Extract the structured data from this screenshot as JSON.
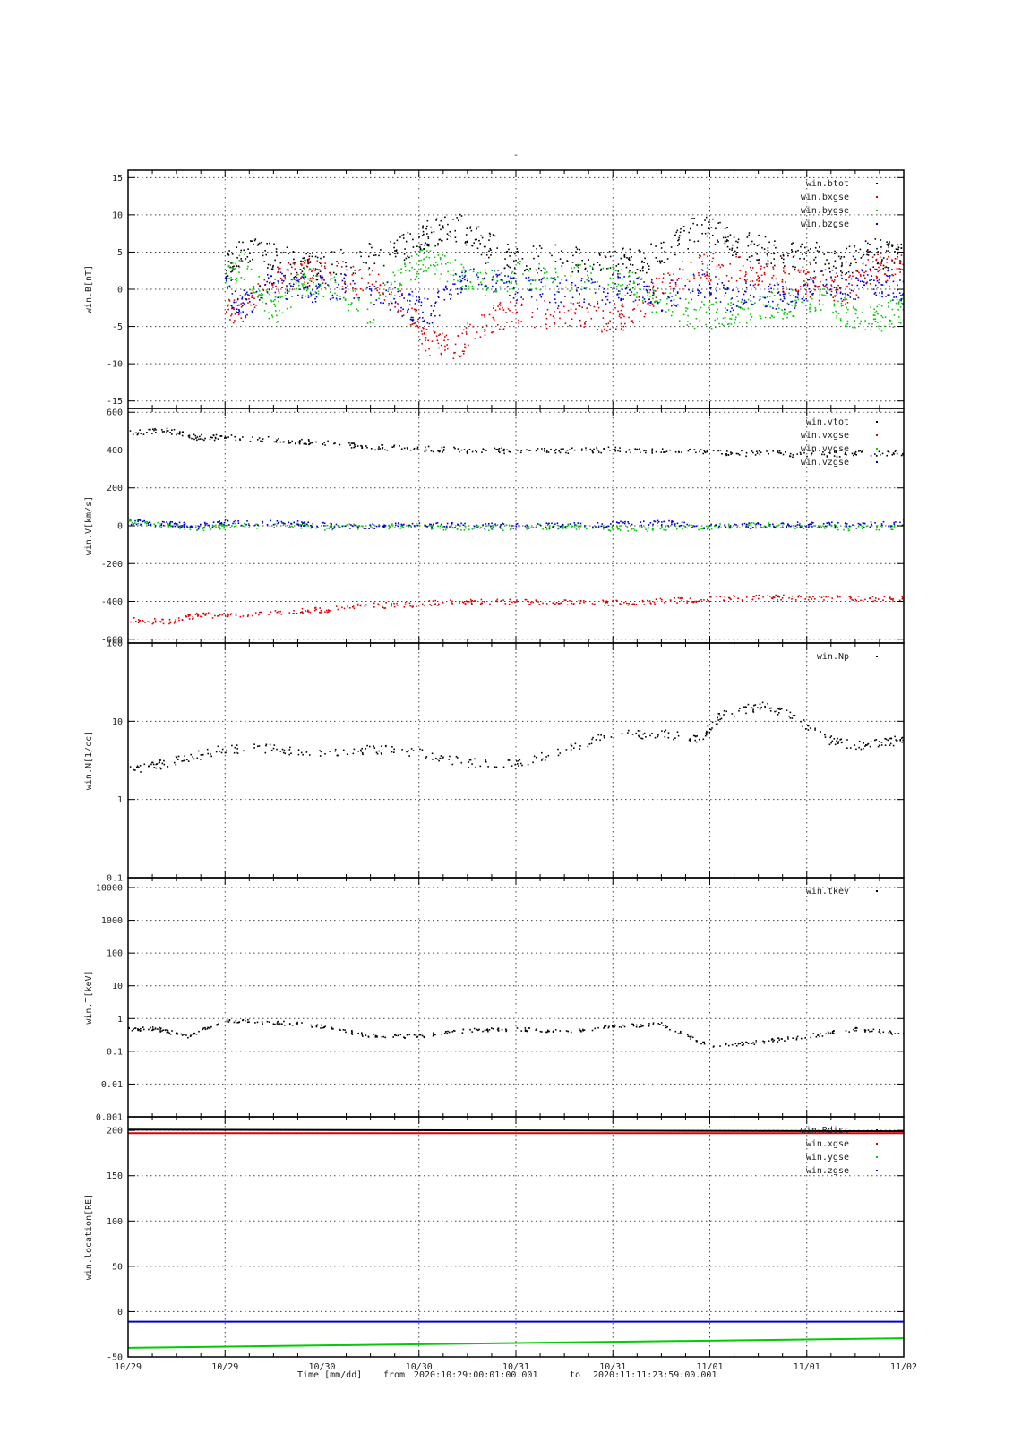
{
  "title": "-",
  "footer": {
    "time_label": "Time [mm/dd]",
    "from_label": "from",
    "from_value": "2020:10:29:00:01:00.001",
    "to_label": "to",
    "to_value": "2020:11:11:23:59:00.001"
  },
  "colors": {
    "black": "#000000",
    "red": "#dd0000",
    "green": "#00cc00",
    "blue": "#0000cc"
  },
  "chart_data": [
    {
      "id": "panel-b",
      "type": "scatter",
      "ylabel": "win.B[nT]",
      "yscale": "linear",
      "ylim": [
        -16,
        16
      ],
      "yticks": [
        -15,
        -10,
        -5,
        0,
        5,
        10,
        15
      ],
      "ytick_labels": [
        "-15",
        "-10",
        "-5",
        "0",
        "5",
        "10",
        "15"
      ],
      "xlim": [
        0,
        4
      ],
      "x_unit": "days since 10/29 00:00",
      "series": [
        {
          "name": "win.btot",
          "color": "#000000",
          "x": [
            0.5,
            0.6,
            0.75,
            0.9,
            1.0,
            1.25,
            1.45,
            1.55,
            1.7,
            1.85,
            2.0,
            2.25,
            2.45,
            2.6,
            2.75,
            2.95,
            3.1,
            3.25,
            3.4,
            3.55,
            3.7,
            3.85,
            3.95,
            4.05,
            4.12
          ],
          "y": [
            3.5,
            5.5,
            4.5,
            3.0,
            3.0,
            4.5,
            6.0,
            7.5,
            8.5,
            6.0,
            4.0,
            4.2,
            4.0,
            3.5,
            5.0,
            8.5,
            6.5,
            5.5,
            4.5,
            4.5,
            4.0,
            5.0,
            4.5,
            7.0,
            8.0
          ]
        },
        {
          "name": "win.bxgse",
          "color": "#dd0000",
          "x": [
            0.5,
            0.6,
            0.75,
            0.9,
            1.0,
            1.25,
            1.45,
            1.55,
            1.7,
            1.85,
            2.0,
            2.25,
            2.45,
            2.6,
            2.75,
            2.95,
            3.1,
            3.25,
            3.4,
            3.55,
            3.7,
            3.85,
            3.95,
            4.05,
            4.12
          ],
          "y": [
            -3.0,
            -2.5,
            1.0,
            2.5,
            2.0,
            1.0,
            -3.0,
            -7.0,
            -7.5,
            -4.0,
            -3.0,
            -3.5,
            -3.8,
            -3.5,
            1.0,
            3.0,
            3.0,
            2.0,
            1.0,
            0.5,
            0.0,
            3.0,
            3.0,
            2.5,
            4.0
          ]
        },
        {
          "name": "win.bygse",
          "color": "#00cc00",
          "x": [
            0.5,
            0.6,
            0.75,
            0.9,
            1.0,
            1.25,
            1.45,
            1.55,
            1.7,
            1.85,
            2.0,
            2.25,
            2.45,
            2.6,
            2.75,
            2.95,
            3.1,
            3.25,
            3.4,
            3.55,
            3.7,
            3.85,
            3.95,
            4.05,
            4.12
          ],
          "y": [
            2.0,
            3.0,
            -3.0,
            1.0,
            1.0,
            -3.0,
            3.0,
            4.0,
            2.0,
            1.0,
            2.0,
            1.5,
            2.0,
            0.5,
            -2.0,
            -3.5,
            -3.0,
            -2.5,
            -2.0,
            -1.0,
            -3.0,
            -4.0,
            -3.0,
            -2.0,
            -6.0
          ]
        },
        {
          "name": "win.bzgse",
          "color": "#0000cc",
          "x": [
            0.5,
            0.6,
            0.75,
            0.9,
            1.0,
            1.25,
            1.45,
            1.55,
            1.7,
            1.85,
            2.0,
            2.25,
            2.45,
            2.6,
            2.75,
            2.95,
            3.1,
            3.25,
            3.4,
            3.55,
            3.7,
            3.85,
            3.95,
            4.05,
            4.12
          ],
          "y": [
            0.0,
            -2.0,
            1.0,
            0.0,
            0.5,
            0.0,
            -2.0,
            -3.0,
            1.0,
            2.0,
            0.5,
            -0.5,
            0.0,
            0.5,
            -1.0,
            1.0,
            -1.0,
            0.0,
            -1.5,
            1.0,
            0.5,
            1.0,
            0.5,
            -0.5,
            1.0
          ]
        }
      ]
    },
    {
      "id": "panel-v",
      "type": "scatter",
      "ylabel": "win.V[km/s]",
      "yscale": "linear",
      "ylim": [
        -620,
        620
      ],
      "yticks": [
        -600,
        -400,
        -200,
        0,
        200,
        400,
        600
      ],
      "ytick_labels": [
        "-600",
        "-400",
        "-200",
        "0",
        "200",
        "400",
        "600"
      ],
      "xlim": [
        0,
        4
      ],
      "x_unit": "days since 10/29 00:00",
      "series": [
        {
          "name": "win.vtot",
          "color": "#000000",
          "x": [
            0.0,
            0.2,
            0.35,
            0.5,
            0.8,
            1.0,
            1.25,
            1.5,
            1.75,
            2.0,
            2.25,
            2.5,
            2.75,
            3.0,
            3.25,
            3.5,
            3.75,
            4.0,
            4.12
          ],
          "y": [
            495,
            505,
            470,
            470,
            455,
            440,
            420,
            410,
            400,
            400,
            400,
            405,
            400,
            390,
            385,
            380,
            385,
            390,
            395
          ]
        },
        {
          "name": "win.vxgse",
          "color": "#dd0000",
          "x": [
            0.0,
            0.2,
            0.35,
            0.5,
            0.8,
            1.0,
            1.25,
            1.5,
            1.75,
            2.0,
            2.25,
            2.5,
            2.75,
            3.0,
            3.25,
            3.5,
            3.75,
            4.0,
            4.12
          ],
          "y": [
            -495,
            -505,
            -470,
            -470,
            -455,
            -440,
            -420,
            -410,
            -400,
            -400,
            -400,
            -405,
            -395,
            -385,
            -375,
            -375,
            -380,
            -385,
            -395
          ]
        },
        {
          "name": "win.vygse",
          "color": "#00cc00",
          "x": [
            0.0,
            0.2,
            0.35,
            0.5,
            0.8,
            1.0,
            1.25,
            1.5,
            1.75,
            2.0,
            2.25,
            2.5,
            2.75,
            3.0,
            3.25,
            3.5,
            3.75,
            4.0,
            4.12
          ],
          "y": [
            20,
            10,
            -10,
            0,
            10,
            -5,
            0,
            0,
            -10,
            -5,
            0,
            -10,
            -15,
            0,
            5,
            0,
            -10,
            -5,
            -5
          ]
        },
        {
          "name": "win.vzgse",
          "color": "#0000cc",
          "x": [
            0.0,
            0.2,
            0.35,
            0.5,
            0.8,
            1.0,
            1.25,
            1.5,
            1.75,
            2.0,
            2.25,
            2.5,
            2.75,
            3.0,
            3.25,
            3.5,
            3.75,
            4.0,
            4.12
          ],
          "y": [
            25,
            15,
            0,
            20,
            20,
            5,
            0,
            5,
            5,
            0,
            5,
            10,
            20,
            0,
            5,
            10,
            5,
            20,
            20
          ]
        }
      ]
    },
    {
      "id": "panel-n",
      "type": "scatter",
      "ylabel": "win.N[1/cc]",
      "yscale": "log",
      "ylim": [
        0.1,
        100
      ],
      "yticks": [
        0.1,
        1,
        10,
        100
      ],
      "ytick_labels": [
        "0.1",
        "1",
        "10",
        "100"
      ],
      "xlim": [
        0,
        4
      ],
      "x_unit": "days since 10/29 00:00",
      "series": [
        {
          "name": "win.Np",
          "color": "#000000",
          "x": [
            0.0,
            0.15,
            0.3,
            0.5,
            0.75,
            1.0,
            1.25,
            1.5,
            1.75,
            2.0,
            2.25,
            2.5,
            2.75,
            2.95,
            3.05,
            3.25,
            3.4,
            3.6,
            3.75,
            3.9,
            4.0,
            4.1,
            4.12
          ],
          "y": [
            2.5,
            2.8,
            3.5,
            4.5,
            4.5,
            4.0,
            4.5,
            4.0,
            3.0,
            2.8,
            4.5,
            7.0,
            7.0,
            6.0,
            12.0,
            16.0,
            13.0,
            6.0,
            5.0,
            5.5,
            6.0,
            9.0,
            3.0
          ]
        }
      ]
    },
    {
      "id": "panel-t",
      "type": "scatter",
      "ylabel": "win.T[keV]",
      "yscale": "log",
      "ylim": [
        0.001,
        20000
      ],
      "yticks": [
        0.001,
        0.01,
        0.1,
        1,
        10,
        100,
        1000,
        10000
      ],
      "ytick_labels": [
        "0.001",
        "0.01",
        "0.1",
        "1",
        "10",
        "100",
        "1000",
        "10000"
      ],
      "xlim": [
        0,
        4
      ],
      "x_unit": "days since 10/29 00:00",
      "series": [
        {
          "name": "win.tkev",
          "color": "#000000",
          "x": [
            0.0,
            0.15,
            0.3,
            0.5,
            0.75,
            1.0,
            1.25,
            1.5,
            1.75,
            2.0,
            2.25,
            2.5,
            2.75,
            3.0,
            3.25,
            3.5,
            3.75,
            4.0,
            4.12
          ],
          "y": [
            0.5,
            0.5,
            0.3,
            0.9,
            0.8,
            0.6,
            0.3,
            0.3,
            0.45,
            0.5,
            0.4,
            0.6,
            0.7,
            0.15,
            0.2,
            0.3,
            0.5,
            0.35,
            0.2
          ]
        }
      ]
    },
    {
      "id": "panel-loc",
      "type": "line",
      "ylabel": "win.location[RE]",
      "yscale": "linear",
      "ylim": [
        -50,
        215
      ],
      "yticks": [
        -50,
        0,
        50,
        100,
        150,
        200
      ],
      "ytick_labels": [
        "-50",
        "0",
        "50",
        "100",
        "150",
        "200"
      ],
      "xlim": [
        0,
        4
      ],
      "x_unit": "days since 10/29 00:00",
      "x_tick_labels": [
        "10/29",
        "10/29",
        "10/30",
        "10/30",
        "10/31",
        "10/31",
        "11/01",
        "11/01",
        "11/02"
      ],
      "series": [
        {
          "name": "win.Rdist",
          "color": "#000000",
          "x": [
            0.0,
            4.12
          ],
          "y": [
            201,
            199
          ]
        },
        {
          "name": "win.xgse",
          "color": "#dd0000",
          "x": [
            0.0,
            4.12
          ],
          "y": [
            197,
            197
          ]
        },
        {
          "name": "win.ygse",
          "color": "#00cc00",
          "x": [
            0.0,
            4.12
          ],
          "y": [
            -40,
            -29
          ]
        },
        {
          "name": "win.zgse",
          "color": "#0000cc",
          "x": [
            0.0,
            4.12
          ],
          "y": [
            -11,
            -11
          ]
        }
      ]
    }
  ]
}
